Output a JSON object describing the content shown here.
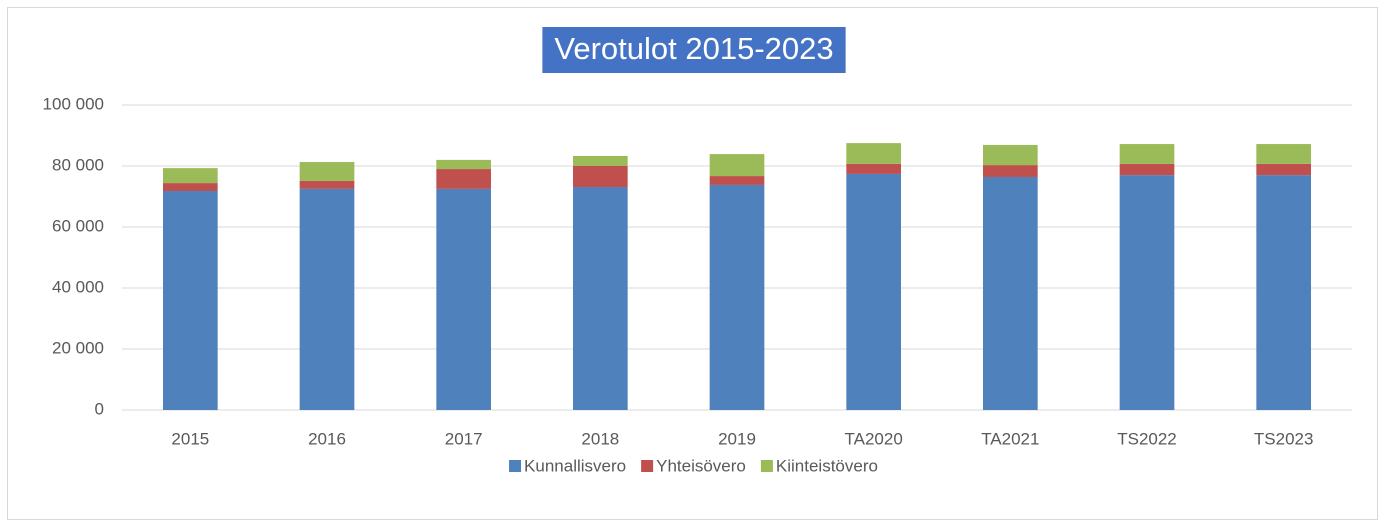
{
  "chart_data": {
    "type": "stacked_bar",
    "title": "Verotulot 2015-2023",
    "categories": [
      "2015",
      "2016",
      "2017",
      "2018",
      "2019",
      "TA2020",
      "TA2021",
      "TS2022",
      "TS2023"
    ],
    "series": [
      {
        "name": "Kunnallisvero",
        "color": "#4f81bd",
        "values": [
          71800,
          72500,
          72500,
          73100,
          73800,
          77400,
          76400,
          77000,
          77000
        ]
      },
      {
        "name": "Yhteisövero",
        "color": "#c0504d",
        "values": [
          2600,
          2600,
          6500,
          6900,
          2900,
          3300,
          3900,
          3700,
          3700
        ]
      },
      {
        "name": "Kiinteistövero",
        "color": "#9bbb59",
        "values": [
          4900,
          6200,
          3000,
          3300,
          7200,
          6800,
          6600,
          6500,
          6500
        ]
      }
    ],
    "ylim": [
      0,
      100000
    ],
    "yticks": [
      0,
      {
        "value": 20000,
        "label": "20 000"
      },
      {
        "value": 40000,
        "label": "40 000"
      },
      {
        "value": 60000,
        "label": "60 000"
      },
      {
        "value": 80000,
        "label": "80 000"
      },
      {
        "value": 100000,
        "label": "100 000"
      }
    ],
    "grid": true,
    "legend": "bottom"
  }
}
